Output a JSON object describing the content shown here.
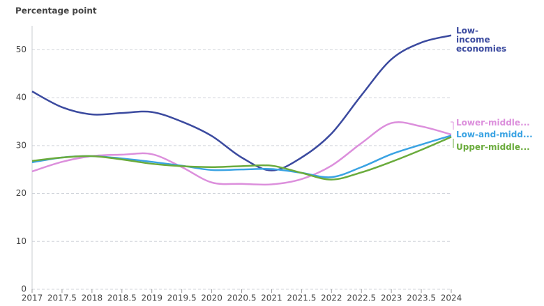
{
  "chart_data": {
    "type": "line",
    "y_label": "Percentage point",
    "x": [
      2017,
      2017.5,
      2018,
      2018.5,
      2019,
      2019.5,
      2020,
      2020.5,
      2021,
      2021.5,
      2022,
      2022.5,
      2023,
      2023.5,
      2024
    ],
    "series": [
      {
        "name": "Low-income economies",
        "color": "#3b4a9f",
        "values": [
          41.3,
          38.0,
          36.5,
          36.8,
          37.0,
          35.0,
          32.0,
          27.5,
          24.8,
          27.5,
          32.5,
          40.5,
          48.0,
          51.5,
          53.0
        ]
      },
      {
        "name": "Lower-middle...",
        "color": "#dc8fdc",
        "values": [
          24.6,
          26.6,
          27.8,
          28.1,
          28.2,
          25.5,
          22.3,
          22.0,
          21.9,
          23.0,
          25.8,
          30.5,
          34.7,
          34.0,
          32.3
        ]
      },
      {
        "name": "Low-and-midd...",
        "color": "#3aa3e3",
        "values": [
          26.5,
          27.5,
          27.8,
          27.3,
          26.6,
          25.8,
          24.9,
          25.0,
          25.1,
          24.3,
          23.4,
          25.5,
          28.2,
          30.2,
          32.1
        ]
      },
      {
        "name": "Upper-middle...",
        "color": "#6aab3c",
        "values": [
          26.8,
          27.5,
          27.8,
          27.1,
          26.2,
          25.7,
          25.5,
          25.7,
          25.8,
          24.3,
          22.9,
          24.4,
          26.6,
          29.1,
          31.8
        ]
      }
    ],
    "xlim": [
      2017,
      2024
    ],
    "xticks": [
      2017,
      2017.5,
      2018,
      2018.5,
      2019,
      2019.5,
      2020,
      2020.5,
      2021,
      2021.5,
      2022,
      2022.5,
      2023,
      2023.5,
      2024
    ],
    "ylim": [
      0,
      55
    ],
    "yticks": [
      0,
      10,
      20,
      30,
      40,
      50
    ],
    "grid": true
  }
}
